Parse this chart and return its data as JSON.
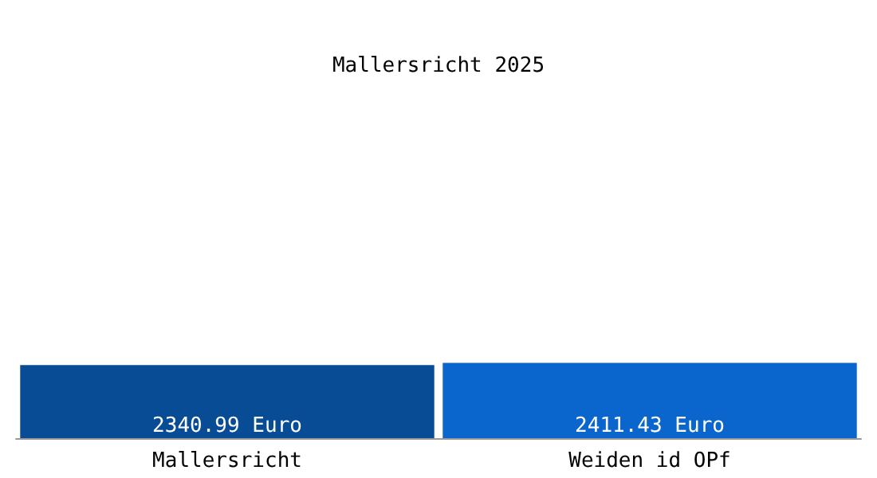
{
  "chart_data": {
    "type": "bar",
    "title": "Mallersricht 2025",
    "categories": [
      "Mallersricht",
      "Weiden id OPf"
    ],
    "values": [
      2340.99,
      2411.43
    ],
    "colors": [
      "#084c96",
      "#0a66cc"
    ],
    "value_labels": [
      "2340.99 Euro",
      "2411.43 Euro"
    ]
  }
}
